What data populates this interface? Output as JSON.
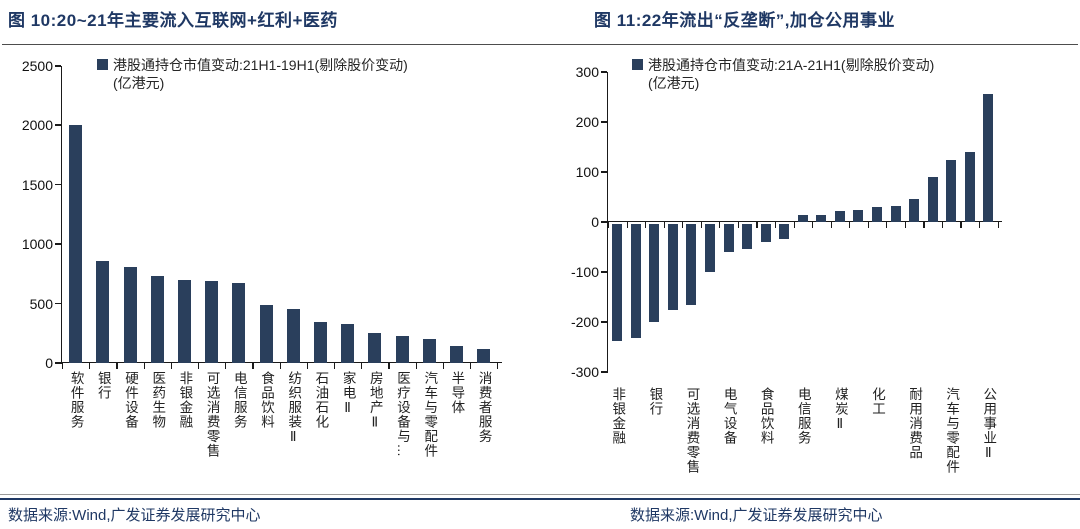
{
  "colors": {
    "bar": "#2a3f5c",
    "title": "#1f3864",
    "axis": "#1a1a1a",
    "source_text": "#1f3864"
  },
  "chart_data": [
    {
      "type": "bar",
      "title": "图 10:20~21年主要流入互联网+红利+医药",
      "legend_line1": "港股通持仓市值变动:21H1-19H1(剔除股价变动)",
      "legend_line2": "(亿港元)",
      "categories": [
        "软件服务",
        "银行",
        "硬件设备",
        "医药生物",
        "非银金融",
        "可选消费零售",
        "电信服务",
        "食品饮料",
        "纺织服装Ⅱ",
        "石油石化",
        "家电Ⅱ",
        "房地产Ⅱ",
        "医疗设备与…",
        "汽车与零配件",
        "半导体",
        "消费者服务"
      ],
      "values": [
        2000,
        855,
        810,
        730,
        700,
        690,
        670,
        490,
        455,
        345,
        330,
        250,
        228,
        200,
        140,
        120
      ],
      "ylim": [
        0,
        2500
      ],
      "yticks": [
        0,
        500,
        1000,
        1500,
        2000,
        2500
      ],
      "grid": false,
      "legend_position": "top",
      "source": "数据来源:Wind,广发证券发展研究中心"
    },
    {
      "type": "bar",
      "title": "图 11:22年流出“反垄断”,加仓公用事业",
      "legend_line1": "港股通持仓市值变动:21A-21H1(剔除股价变动)",
      "legend_line2": "(亿港元)",
      "categories": [
        "非银金融",
        "",
        "银行",
        "",
        "可选消费零售",
        "",
        "电气设备",
        "",
        "食品饮料",
        "",
        "电信服务",
        "",
        "煤炭Ⅱ",
        "",
        "化工",
        "",
        "耐用消费品",
        "",
        "汽车与零配件",
        "",
        "公用事业Ⅱ"
      ],
      "values": [
        -235,
        -228,
        -197,
        -173,
        -162,
        -97,
        -56,
        -50,
        -36,
        -30,
        14,
        15,
        23,
        24,
        30,
        32,
        47,
        90,
        124,
        140,
        256
      ],
      "ylim": [
        -300,
        300
      ],
      "yticks": [
        -300,
        -200,
        -100,
        0,
        100,
        200,
        300
      ],
      "grid": false,
      "legend_position": "top",
      "source": "数据来源:Wind,广发证券发展研究中心"
    }
  ]
}
